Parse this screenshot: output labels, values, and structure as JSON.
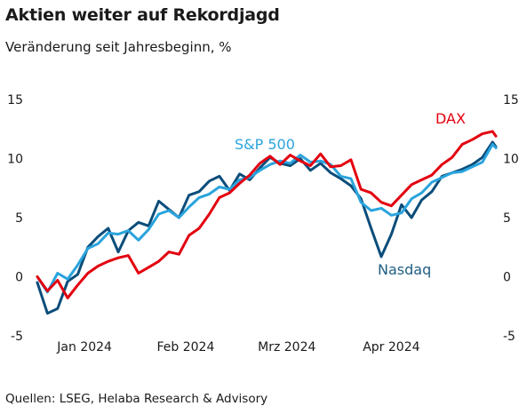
{
  "title": "Aktien weiter auf Rekordjagd",
  "subtitle": "Veränderung seit Jahresbeginn, %",
  "source": "Quellen: LSEG, Helaba Research & Advisory",
  "chart_data": {
    "type": "line",
    "title": "Aktien weiter auf Rekordjagd",
    "subtitle": "Veränderung seit Jahresbeginn, %",
    "ylim": [
      -5,
      15
    ],
    "yticks": [
      -5,
      0,
      5,
      10,
      15
    ],
    "y_axis_both_sides": true,
    "xlim": [
      "2024-01-02",
      "2024-05-17"
    ],
    "month_labels": [
      {
        "label": "Jan 2024",
        "date": "2024-01-16"
      },
      {
        "label": "Feb 2024",
        "date": "2024-02-15"
      },
      {
        "label": "Mrz 2024",
        "date": "2024-03-16"
      },
      {
        "label": "Apr 2024",
        "date": "2024-04-16"
      }
    ],
    "grid": false,
    "legend": "inline labels",
    "series": [
      {
        "name": "DAX",
        "color": "#e3000f",
        "label_color": "#e3000f",
        "x": [
          "2024-01-02",
          "2024-01-05",
          "2024-01-08",
          "2024-01-11",
          "2024-01-14",
          "2024-01-17",
          "2024-01-20",
          "2024-01-23",
          "2024-01-26",
          "2024-01-29",
          "2024-02-01",
          "2024-02-04",
          "2024-02-07",
          "2024-02-10",
          "2024-02-13",
          "2024-02-16",
          "2024-02-19",
          "2024-02-22",
          "2024-02-25",
          "2024-02-28",
          "2024-03-02",
          "2024-03-05",
          "2024-03-08",
          "2024-03-11",
          "2024-03-14",
          "2024-03-17",
          "2024-03-20",
          "2024-03-23",
          "2024-03-26",
          "2024-03-29",
          "2024-04-01",
          "2024-04-04",
          "2024-04-07",
          "2024-04-10",
          "2024-04-13",
          "2024-04-16",
          "2024-04-19",
          "2024-04-22",
          "2024-04-25",
          "2024-04-28",
          "2024-05-01",
          "2024-05-04",
          "2024-05-07",
          "2024-05-10",
          "2024-05-13",
          "2024-05-16",
          "2024-05-17"
        ],
        "values": [
          0.0,
          -1.2,
          -0.3,
          -1.8,
          -0.7,
          0.3,
          0.9,
          1.3,
          1.6,
          1.8,
          0.3,
          0.8,
          1.3,
          2.1,
          1.9,
          3.5,
          4.1,
          5.3,
          6.7,
          7.1,
          7.9,
          8.6,
          9.6,
          10.2,
          9.5,
          10.3,
          9.8,
          9.4,
          10.4,
          9.3,
          9.4,
          9.9,
          7.4,
          7.1,
          6.3,
          6.0,
          6.9,
          7.8,
          8.2,
          8.6,
          9.5,
          10.1,
          11.2,
          11.6,
          12.1,
          12.3,
          11.9
        ]
      },
      {
        "name": "S&P 500",
        "color": "#2aa4dd",
        "label_color": "#2aa4dd",
        "x": [
          "2024-01-02",
          "2024-01-05",
          "2024-01-08",
          "2024-01-11",
          "2024-01-14",
          "2024-01-17",
          "2024-01-20",
          "2024-01-23",
          "2024-01-26",
          "2024-01-29",
          "2024-02-01",
          "2024-02-04",
          "2024-02-07",
          "2024-02-10",
          "2024-02-13",
          "2024-02-16",
          "2024-02-19",
          "2024-02-22",
          "2024-02-25",
          "2024-02-28",
          "2024-03-02",
          "2024-03-05",
          "2024-03-08",
          "2024-03-11",
          "2024-03-14",
          "2024-03-17",
          "2024-03-20",
          "2024-03-23",
          "2024-03-26",
          "2024-03-29",
          "2024-04-01",
          "2024-04-04",
          "2024-04-07",
          "2024-04-10",
          "2024-04-13",
          "2024-04-16",
          "2024-04-19",
          "2024-04-22",
          "2024-04-25",
          "2024-04-28",
          "2024-05-01",
          "2024-05-04",
          "2024-05-07",
          "2024-05-10",
          "2024-05-13",
          "2024-05-16",
          "2024-05-17"
        ],
        "values": [
          0.0,
          -1.3,
          0.3,
          -0.2,
          1.0,
          2.4,
          2.8,
          3.7,
          3.6,
          3.9,
          3.1,
          4.0,
          5.3,
          5.6,
          5.0,
          5.9,
          6.7,
          7.0,
          7.6,
          7.4,
          8.2,
          8.4,
          9.0,
          9.5,
          9.8,
          9.6,
          10.3,
          9.7,
          9.8,
          9.5,
          8.5,
          8.3,
          6.3,
          5.6,
          5.8,
          5.2,
          5.4,
          6.6,
          7.1,
          8.0,
          8.4,
          8.8,
          8.9,
          9.3,
          9.7,
          11.2,
          10.9
        ]
      },
      {
        "name": "Nasdaq",
        "color": "#0b4d7a",
        "label_color": "#1f5d82",
        "x": [
          "2024-01-02",
          "2024-01-05",
          "2024-01-08",
          "2024-01-11",
          "2024-01-14",
          "2024-01-17",
          "2024-01-20",
          "2024-01-23",
          "2024-01-26",
          "2024-01-29",
          "2024-02-01",
          "2024-02-04",
          "2024-02-07",
          "2024-02-10",
          "2024-02-13",
          "2024-02-16",
          "2024-02-19",
          "2024-02-22",
          "2024-02-25",
          "2024-02-28",
          "2024-03-02",
          "2024-03-05",
          "2024-03-08",
          "2024-03-11",
          "2024-03-14",
          "2024-03-17",
          "2024-03-20",
          "2024-03-23",
          "2024-03-26",
          "2024-03-29",
          "2024-04-01",
          "2024-04-04",
          "2024-04-07",
          "2024-04-10",
          "2024-04-13",
          "2024-04-16",
          "2024-04-19",
          "2024-04-22",
          "2024-04-25",
          "2024-04-28",
          "2024-05-01",
          "2024-05-04",
          "2024-05-07",
          "2024-05-10",
          "2024-05-13",
          "2024-05-16",
          "2024-05-17"
        ],
        "values": [
          -0.5,
          -3.1,
          -2.7,
          -0.4,
          0.2,
          2.5,
          3.4,
          4.1,
          2.1,
          3.9,
          4.6,
          4.3,
          6.4,
          5.7,
          5.0,
          6.9,
          7.2,
          8.1,
          8.5,
          7.3,
          8.7,
          8.2,
          9.2,
          10.1,
          9.6,
          9.4,
          10.0,
          9.0,
          9.6,
          8.8,
          8.3,
          7.7,
          6.6,
          4.1,
          1.7,
          3.6,
          6.1,
          5.0,
          6.5,
          7.2,
          8.5,
          8.8,
          9.1,
          9.5,
          10.1,
          11.4,
          11.0
        ]
      }
    ]
  }
}
